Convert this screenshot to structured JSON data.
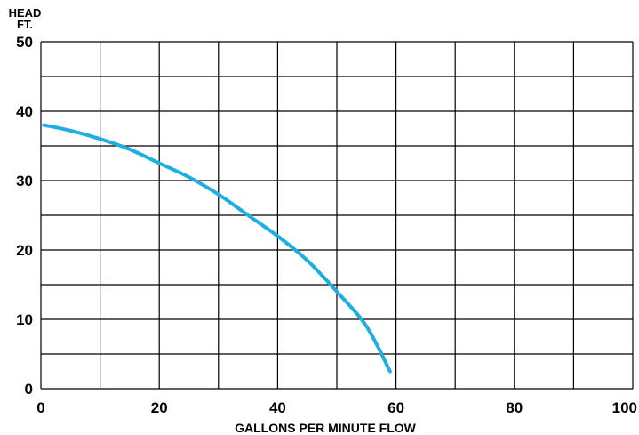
{
  "chart_data": {
    "type": "line",
    "title": "",
    "xlabel": "GALLONS PER MINUTE FLOW",
    "ylabel_lines": [
      "HEAD",
      "FT."
    ],
    "xlim": [
      0,
      100
    ],
    "ylim": [
      0,
      50
    ],
    "x_ticks": [
      0,
      20,
      40,
      60,
      80,
      100
    ],
    "y_ticks": [
      0,
      10,
      20,
      30,
      40,
      50
    ],
    "x_grid_step": 10,
    "y_grid_step": 5,
    "grid": true,
    "line_color": "#1eaee0",
    "series": [
      {
        "x": [
          0.5,
          5,
          10,
          15,
          20,
          25,
          30,
          35,
          40,
          45,
          50,
          55,
          59
        ],
        "y": [
          38,
          37.2,
          36,
          34.5,
          32.5,
          30.5,
          28,
          25,
          22,
          18.5,
          14,
          9,
          2.5
        ]
      }
    ]
  }
}
